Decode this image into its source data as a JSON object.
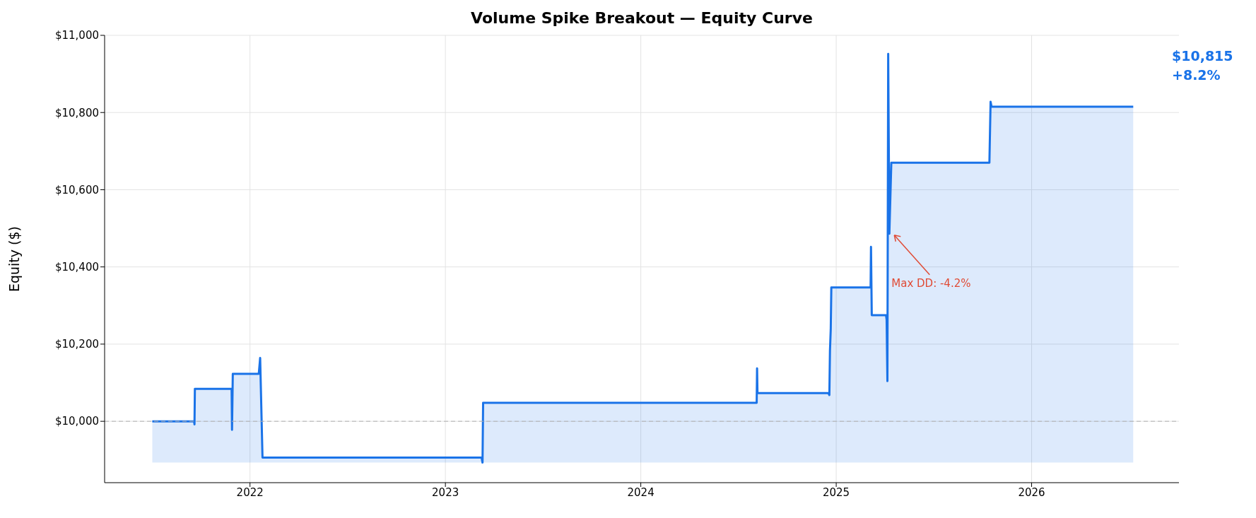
{
  "chart_data": {
    "type": "area",
    "title": "Volume Spike Breakout — Equity Curve",
    "ylabel": "Equity ($)",
    "x": [
      2021.5,
      2021.714,
      2021.716,
      2021.718,
      2021.906,
      2021.908,
      2021.912,
      2022.045,
      2022.052,
      2022.064,
      2023.185,
      2023.19,
      2023.193,
      2024.593,
      2024.595,
      2024.597,
      2024.96,
      2024.965,
      2024.968,
      2024.972,
      2024.975,
      2025.176,
      2025.178,
      2025.182,
      2025.255,
      2025.258,
      2025.262,
      2025.266,
      2025.272,
      2025.282,
      2025.784,
      2025.79,
      2025.795,
      2026.52
    ],
    "series": [
      {
        "color": "#1a73e8",
        "values": [
          10000,
          10000,
          9992,
          10084,
          10084,
          9978,
          10123,
          10123,
          10164,
          9906,
          9906,
          9893,
          10048,
          10048,
          10137,
          10073,
          10073,
          10068,
          10183,
          10238,
          10347,
          10347,
          10452,
          10275,
          10275,
          10263,
          10104,
          10952,
          10486,
          10670,
          10670,
          10828,
          10815,
          10815
        ]
      }
    ],
    "xlim": [
      2021.256,
      2026.754
    ],
    "xticks": [
      2022,
      2023,
      2024,
      2025,
      2026
    ],
    "ylim": [
      9841,
      11000
    ],
    "yticks": [
      {
        "value": 10000,
        "label": "$10,000"
      },
      {
        "value": 10200,
        "label": "$10,200"
      },
      {
        "value": 10400,
        "label": "$10,400"
      },
      {
        "value": 10600,
        "label": "$10,600"
      },
      {
        "value": 10800,
        "label": "$10,800"
      },
      {
        "value": 11000,
        "label": "$11,000"
      }
    ],
    "grid": true,
    "marker": "none",
    "line_style": "solid",
    "ref_lines": [
      {
        "axis": "y",
        "value": 10000,
        "color": "#b0b0b0",
        "line_style": "dashed"
      }
    ],
    "annotations": [
      {
        "text": "Max DD: -4.2%",
        "x": 2025.29,
        "y": 10486
      },
      "$10,815",
      "+8.2%"
    ]
  }
}
